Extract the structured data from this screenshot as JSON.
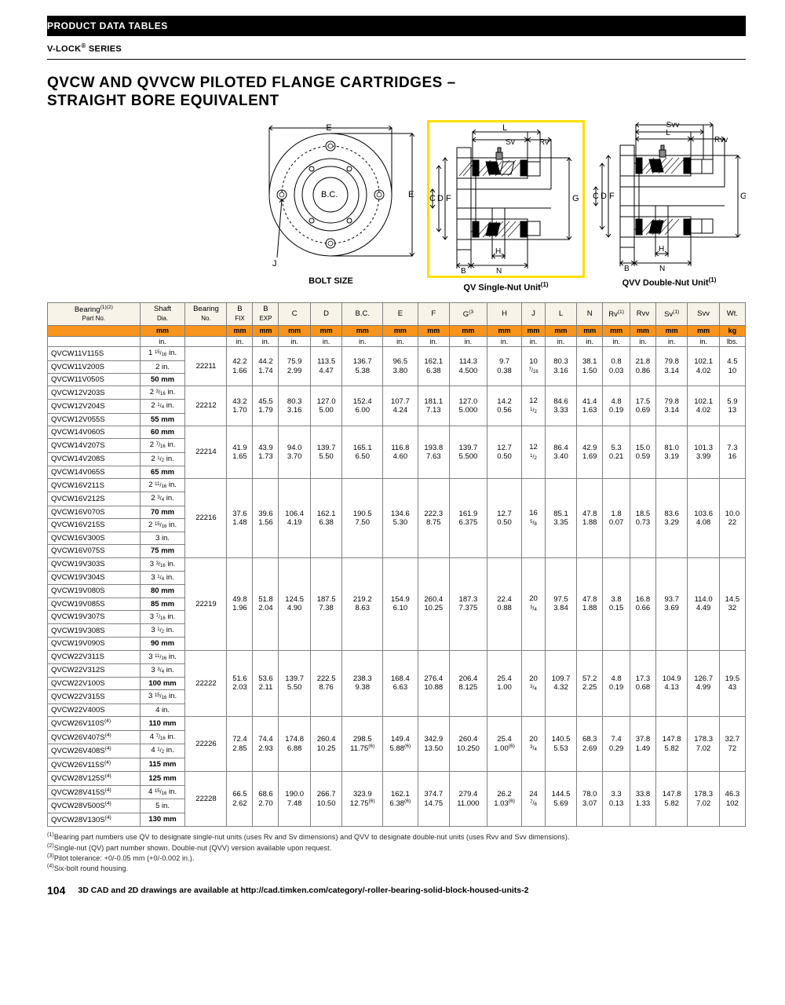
{
  "header": {
    "section": "PRODUCT DATA TABLES",
    "series": "V-LOCK",
    "seriesSuffix": "®",
    "seriesWord": " SERIES",
    "title1": "QVCW AND QVVCW PILOTED FLANGE CARTRIDGES –",
    "title2": "STRAIGHT BORE EQUIVALENT"
  },
  "diagrams": {
    "d1_caption_left": "BOLT SIZE",
    "d2_caption": "QV Single-Nut Unit",
    "d3_caption": "QVV Double-Nut Unit",
    "labels": {
      "E": "E",
      "BC": "B.C.",
      "J": "J",
      "L": "L",
      "Sv": "Sv",
      "Rv": "Rv",
      "F": "F",
      "D": "D",
      "C": "C",
      "G": "G",
      "H": "H",
      "B": "B",
      "N": "N",
      "Svv": "Svv",
      "Rvv": "Rvv"
    }
  },
  "table": {
    "headers": [
      "Bearing\nPart No.",
      "Shaft\nDia.",
      "Bearing\nNo.",
      "B\nFIX",
      "B\nEXP",
      "C",
      "D",
      "B.C.",
      "E",
      "F",
      "G",
      "H",
      "J",
      "L",
      "N",
      "Rv",
      "Rvv",
      "Sv",
      "Svv",
      "Wt."
    ],
    "headerSups": {
      "0": "(1)(2)",
      "10": "(3",
      "15": "(1)",
      "17": "(1)"
    },
    "unitRow1": [
      "",
      "mm",
      "",
      "mm",
      "mm",
      "mm",
      "mm",
      "mm",
      "mm",
      "mm",
      "mm",
      "mm",
      "mm",
      "mm",
      "mm",
      "mm",
      "mm",
      "mm",
      "mm",
      "kg"
    ],
    "unitRow2": [
      "",
      "in.",
      "",
      "in.",
      "in.",
      "in.",
      "in.",
      "in.",
      "in.",
      "in.",
      "in.",
      "in.",
      "in.",
      "in.",
      "in.",
      "in.",
      "in.",
      "in.",
      "in.",
      "lbs."
    ],
    "groups": [
      {
        "parts": [
          [
            "QVCW11V115S",
            "1 15/16 in."
          ],
          [
            "QVCW11V200S",
            "2 in."
          ],
          [
            "QVCW11V050S",
            "50 mm"
          ]
        ],
        "bearingNo": "22211",
        "mm": [
          "42.2",
          "44.2",
          "75.9",
          "113.5",
          "136.7",
          "96.5",
          "162.1",
          "114.3",
          "9.7",
          "10",
          "80.3",
          "38.1",
          "0.8",
          "21.8",
          "79.8",
          "102.1",
          "4.5"
        ],
        "in": [
          "1.66",
          "1.74",
          "2.99",
          "4.47",
          "5.38",
          "3.80",
          "6.38",
          "4.500",
          "0.38",
          "7/16",
          "3.16",
          "1.50",
          "0.03",
          "0.86",
          "3.14",
          "4.02",
          "10"
        ]
      },
      {
        "parts": [
          [
            "QVCW12V203S",
            "2 3/16 in."
          ],
          [
            "QVCW12V204S",
            "2 1/4 in."
          ],
          [
            "QVCW12V055S",
            "55 mm"
          ]
        ],
        "bearingNo": "22212",
        "mm": [
          "43.2",
          "45.5",
          "80.3",
          "127.0",
          "152.4",
          "107.7",
          "181.1",
          "127.0",
          "14.2",
          "12",
          "84.6",
          "41.4",
          "4.8",
          "17.5",
          "79.8",
          "102.1",
          "5.9"
        ],
        "in": [
          "1.70",
          "1.79",
          "3.16",
          "5.00",
          "6.00",
          "4.24",
          "7.13",
          "5.000",
          "0.56",
          "1/2",
          "3.33",
          "1.63",
          "0.19",
          "0.69",
          "3.14",
          "4.02",
          "13"
        ]
      },
      {
        "parts": [
          [
            "QVCW14V060S",
            "60 mm"
          ],
          [
            "QVCW14V207S",
            "2 7/16 in."
          ],
          [
            "QVCW14V208S",
            "2 1/2 in."
          ],
          [
            "QVCW14V065S",
            "65 mm"
          ]
        ],
        "bearingNo": "22214",
        "mm": [
          "41.9",
          "43.9",
          "94.0",
          "139.7",
          "165.1",
          "116.8",
          "193.8",
          "139.7",
          "12.7",
          "12",
          "86.4",
          "42.9",
          "5.3",
          "15.0",
          "81.0",
          "101.3",
          "7.3"
        ],
        "in": [
          "1.65",
          "1.73",
          "3.70",
          "5.50",
          "6.50",
          "4.60",
          "7.63",
          "5.500",
          "0.50",
          "1/2",
          "3.40",
          "1.69",
          "0.21",
          "0.59",
          "3.19",
          "3.99",
          "16"
        ]
      },
      {
        "parts": [
          [
            "QVCW16V211S",
            "2 11/16 in."
          ],
          [
            "QVCW16V212S",
            "2 3/4 in."
          ],
          [
            "QVCW16V070S",
            "70 mm"
          ],
          [
            "QVCW16V215S",
            "2 15/16 in."
          ],
          [
            "QVCW16V300S",
            "3 in."
          ],
          [
            "QVCW16V075S",
            "75 mm"
          ]
        ],
        "bearingNo": "22216",
        "mm": [
          "37.6",
          "39.6",
          "106.4",
          "162.1",
          "190.5",
          "134.6",
          "222.3",
          "161.9",
          "12.7",
          "16",
          "85.1",
          "47.8",
          "1.8",
          "18.5",
          "83.6",
          "103.6",
          "10.0"
        ],
        "in": [
          "1.48",
          "1.56",
          "4.19",
          "6.38",
          "7.50",
          "5.30",
          "8.75",
          "6.375",
          "0.50",
          "5/8",
          "3.35",
          "1.88",
          "0.07",
          "0.73",
          "3.29",
          "4.08",
          "22"
        ]
      },
      {
        "parts": [
          [
            "QVCW19V303S",
            "3 3/16 in."
          ],
          [
            "QVCW19V304S",
            "3 1/4 in."
          ],
          [
            "QVCW19V080S",
            "80 mm"
          ],
          [
            "QVCW19V085S",
            "85 mm"
          ],
          [
            "QVCW19V307S",
            "3 7/16 in."
          ],
          [
            "QVCW19V308S",
            "3 1/2 in."
          ],
          [
            "QVCW19V090S",
            "90 mm"
          ]
        ],
        "bearingNo": "22219",
        "mm": [
          "49.8",
          "51.8",
          "124.5",
          "187.5",
          "219.2",
          "154.9",
          "260.4",
          "187.3",
          "22.4",
          "20",
          "97.5",
          "47.8",
          "3.8",
          "16.8",
          "93.7",
          "114.0",
          "14.5"
        ],
        "in": [
          "1.96",
          "2.04",
          "4.90",
          "7.38",
          "8.63",
          "6.10",
          "10.25",
          "7.375",
          "0.88",
          "3/4",
          "3.84",
          "1.88",
          "0.15",
          "0.66",
          "3.69",
          "4.49",
          "32"
        ]
      },
      {
        "parts": [
          [
            "QVCW22V311S",
            "3 11/16 in."
          ],
          [
            "QVCW22V312S",
            "3 3/4 in."
          ],
          [
            "QVCW22V100S",
            "100 mm"
          ],
          [
            "QVCW22V315S",
            "3 15/16 in."
          ],
          [
            "QVCW22V400S",
            "4 in."
          ]
        ],
        "bearingNo": "22222",
        "mm": [
          "51.6",
          "53.6",
          "139.7",
          "222.5",
          "238.3",
          "168.4",
          "276.4",
          "206.4",
          "25.4",
          "20",
          "109.7",
          "57.2",
          "4.8",
          "17.3",
          "104.9",
          "126.7",
          "19.5"
        ],
        "in": [
          "2.03",
          "2.11",
          "5.50",
          "8.76",
          "9.38",
          "6.63",
          "10.88",
          "8.125",
          "1.00",
          "3/4",
          "4.32",
          "2.25",
          "0.19",
          "0.68",
          "4.13",
          "4.99",
          "43"
        ]
      },
      {
        "parts": [
          [
            "QVCW26V110S(4)",
            "110 mm"
          ],
          [
            "QVCW26V407S(4)",
            "4 7/16 in."
          ],
          [
            "QVCW26V408S(4)",
            "4 1/2 in."
          ],
          [
            "QVCW26V115S(4)",
            "115 mm"
          ]
        ],
        "bearingNo": "22226",
        "mm": [
          "72.4",
          "74.4",
          "174.8",
          "260.4",
          "298.5",
          "149.4",
          "342.9",
          "260.4",
          "25.4",
          "20",
          "140.5",
          "68.3",
          "7.4",
          "37.8",
          "147.8",
          "178.3",
          "32.7"
        ],
        "in": [
          "2.85",
          "2.93",
          "6.88",
          "10.25",
          "11.75(6)",
          "5.88(6)",
          "13.50",
          "10.250",
          "1.00(6)",
          "3/4",
          "5.53",
          "2.69",
          "0.29",
          "1.49",
          "5.82",
          "7.02",
          "72"
        ]
      },
      {
        "parts": [
          [
            "QVCW28V125S(4)",
            "125 mm"
          ],
          [
            "QVCW28V415S(4)",
            "4 15/16 in."
          ],
          [
            "QVCW28V500S(4)",
            "5 in."
          ],
          [
            "QVCW28V130S(4)",
            "130 mm"
          ]
        ],
        "bearingNo": "22228",
        "mm": [
          "66.5",
          "68.6",
          "190.0",
          "266.7",
          "323.9",
          "162.1",
          "374.7",
          "279.4",
          "26.2",
          "24",
          "144.5",
          "78.0",
          "3.3",
          "33.8",
          "147.8",
          "178.3",
          "46.3"
        ],
        "in": [
          "2.62",
          "2.70",
          "7.48",
          "10.50",
          "12.75(6)",
          "6.38(6)",
          "14.75",
          "11.000",
          "1.03(6)",
          "7/8",
          "5.69",
          "3.07",
          "0.13",
          "1.33",
          "5.82",
          "7.02",
          "102"
        ]
      }
    ]
  },
  "footnotes": [
    "Bearing part numbers use QV to designate single-nut units (uses Rv and Sv dimensions) and QVV to designate double-nut units (uses Rvv and Svv dimensions).",
    "Single-nut (QV) part number shown. Double-nut (QVV) version available upon request.",
    "Pilot tolerance: +0/-0.05 mm (+0/-0.002 in.).",
    "Six-bolt round housing."
  ],
  "footer": {
    "page": "104",
    "text": "3D CAD and 2D drawings are available at http://cad.timken.com/category/-roller-bearing-solid-block-housed-units-2"
  }
}
